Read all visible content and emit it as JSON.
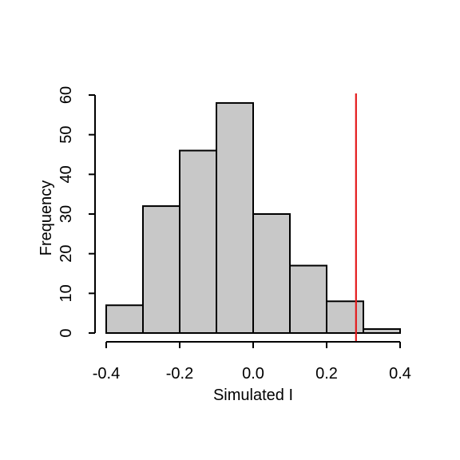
{
  "chart_data": {
    "type": "bar",
    "title": "",
    "xlabel": "Simulated I",
    "ylabel": "Frequency",
    "bins": [
      {
        "x0": -0.4,
        "x1": -0.3,
        "count": 7
      },
      {
        "x0": -0.3,
        "x1": -0.2,
        "count": 32
      },
      {
        "x0": -0.2,
        "x1": -0.1,
        "count": 46
      },
      {
        "x0": -0.1,
        "x1": 0.0,
        "count": 58
      },
      {
        "x0": 0.0,
        "x1": 0.1,
        "count": 30
      },
      {
        "x0": 0.1,
        "x1": 0.2,
        "count": 17
      },
      {
        "x0": 0.2,
        "x1": 0.3,
        "count": 8
      },
      {
        "x0": 0.3,
        "x1": 0.4,
        "count": 1
      }
    ],
    "xlim": [
      -0.4,
      0.4
    ],
    "ylim": [
      0,
      60
    ],
    "x_ticks": [
      "-0.4",
      "-0.2",
      "0.0",
      "0.2",
      "0.4"
    ],
    "x_tick_values": [
      -0.4,
      -0.2,
      0.0,
      0.2,
      0.4
    ],
    "y_ticks": [
      "0",
      "10",
      "20",
      "30",
      "40",
      "50",
      "60"
    ],
    "y_tick_values": [
      0,
      10,
      20,
      30,
      40,
      50,
      60
    ],
    "observed_value": 0.28,
    "grid": false,
    "colors": {
      "bar_fill": "#c8c8c8",
      "bar_stroke": "#000000",
      "reference_line": "#e41a1c"
    }
  }
}
